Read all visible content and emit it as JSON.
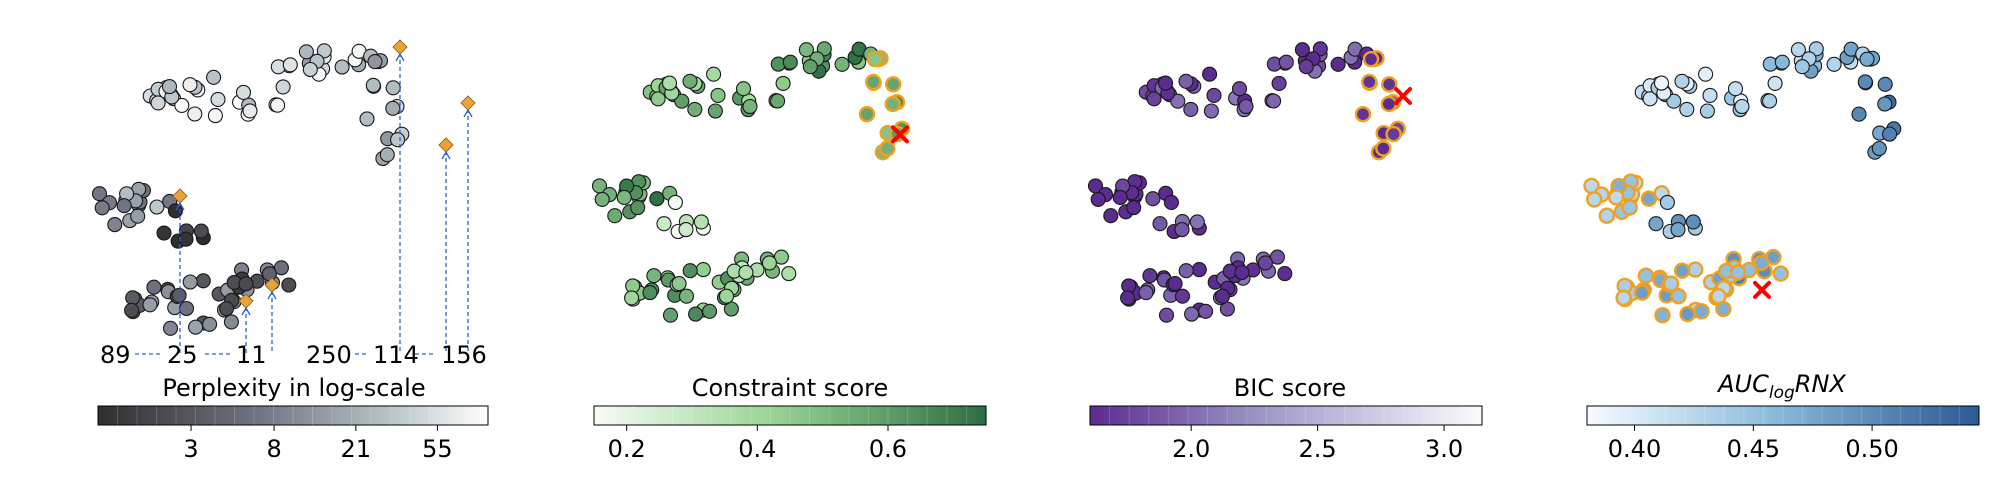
{
  "chart_data": [
    {
      "type": "scatter",
      "panel": "perplexity",
      "colorbar": {
        "title": "Perplexity in log-scale",
        "ticks": [
          3,
          8,
          21,
          55
        ],
        "tick_labels": [
          "3",
          "8",
          "21",
          "55"
        ],
        "range": [
          1,
          100
        ],
        "scale": "log",
        "colors": [
          "#2f2f2f",
          "#ffffff"
        ]
      },
      "selected_labels": [
        "89",
        "25",
        "11",
        "250",
        "114",
        "156"
      ],
      "highlight_color": "#e8a33a",
      "link_color": "#2b5fd9"
    },
    {
      "type": "scatter",
      "panel": "constraint",
      "colorbar": {
        "title": "Constraint score",
        "ticks": [
          0.2,
          0.4,
          0.6
        ],
        "tick_labels": [
          "0.2",
          "0.4",
          "0.6"
        ],
        "range": [
          0.15,
          0.75
        ],
        "colors": [
          "#f7fcf5",
          "#2d6e44"
        ]
      },
      "highlight_color": "#f0a020",
      "best_marker_color": "#ff0000"
    },
    {
      "type": "scatter",
      "panel": "bic",
      "colorbar": {
        "title": "BIC score",
        "ticks": [
          2.0,
          2.5,
          3.0
        ],
        "tick_labels": [
          "2.0",
          "2.5",
          "3.0"
        ],
        "range": [
          1.6,
          3.15
        ],
        "colors": [
          "#5b2c8f",
          "#fcfbfd"
        ]
      },
      "highlight_color": "#f0a020",
      "best_marker_color": "#ff0000"
    },
    {
      "type": "scatter",
      "panel": "auc",
      "colorbar": {
        "title_base": "AUC",
        "title_sub": "log",
        "title_tail": "RNX",
        "ticks": [
          0.4,
          0.45,
          0.5
        ],
        "tick_labels": [
          "0.40",
          "0.45",
          "0.50"
        ],
        "range": [
          0.38,
          0.545
        ],
        "colors": [
          "#f7fbff",
          "#2a5a93"
        ]
      },
      "highlight_color": "#f0a020",
      "best_marker_color": "#ff0000"
    }
  ]
}
